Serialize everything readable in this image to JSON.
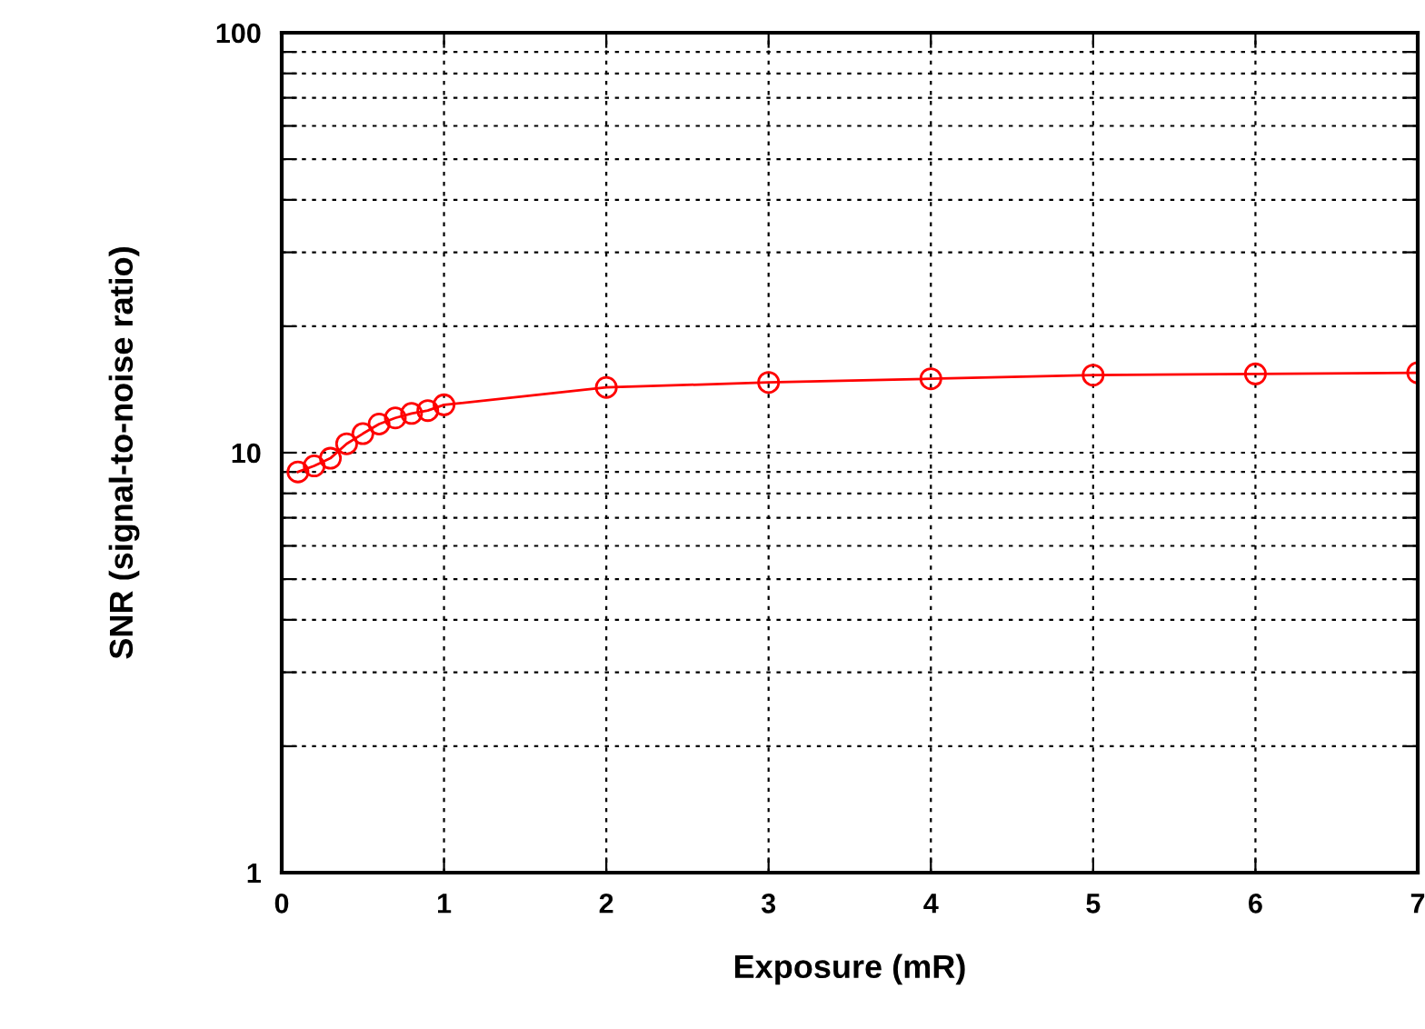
{
  "chart_data": {
    "type": "line",
    "xlabel": "Exposure (mR)",
    "ylabel": "SNR (signal-to-noise ratio)",
    "x": [
      0.1,
      0.2,
      0.3,
      0.4,
      0.5,
      0.6,
      0.7,
      0.8,
      0.9,
      1,
      2,
      3,
      4,
      5,
      6,
      7
    ],
    "series": [
      {
        "color": "#ff0000",
        "values": [
          9.0,
          9.3,
          9.7,
          10.5,
          11.1,
          11.7,
          12.1,
          12.4,
          12.6,
          13.0,
          14.3,
          14.7,
          15.0,
          15.3,
          15.4,
          15.5
        ]
      }
    ],
    "log": "y",
    "marker": "circle",
    "line_style": "solid",
    "grid": true,
    "xlim": [
      0,
      7
    ],
    "xticks": [
      0,
      1,
      2,
      3,
      4,
      5,
      6,
      7
    ],
    "ylim": [
      1,
      100
    ],
    "yticks": [
      1,
      {
        "value": 2,
        "label": null
      },
      {
        "value": 3,
        "label": null
      },
      {
        "value": 4,
        "label": null
      },
      {
        "value": 5,
        "label": null
      },
      {
        "value": 6,
        "label": null
      },
      {
        "value": 7,
        "label": null
      },
      {
        "value": 8,
        "label": null
      },
      {
        "value": 9,
        "label": null
      },
      10,
      {
        "value": 20,
        "label": null
      },
      {
        "value": 30,
        "label": null
      },
      {
        "value": 40,
        "label": null
      },
      {
        "value": 50,
        "label": null
      },
      {
        "value": 60,
        "label": null
      },
      {
        "value": 70,
        "label": null
      },
      {
        "value": 80,
        "label": null
      },
      {
        "value": 90,
        "label": null
      },
      100
    ]
  }
}
